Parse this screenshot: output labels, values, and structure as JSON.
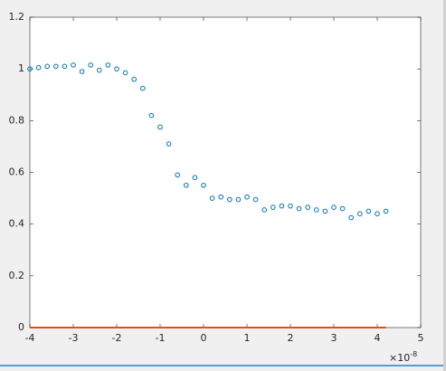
{
  "chart_data": {
    "type": "scatter",
    "x_exponent": {
      "base": "×10",
      "power": "-8"
    },
    "xlim": [
      -4,
      5
    ],
    "xticks": [
      -4,
      -3,
      -2,
      -1,
      0,
      1,
      2,
      3,
      4,
      5
    ],
    "ylim": [
      0,
      1.2
    ],
    "yticks": [
      0,
      0.2,
      0.4,
      0.6,
      0.8,
      1,
      1.2
    ],
    "grid": false,
    "series": [
      {
        "color": "#0072bd",
        "style": "markers",
        "x": [
          -4.0,
          -3.8,
          -3.6,
          -3.4,
          -3.2,
          -3.0,
          -2.8,
          -2.6,
          -2.4,
          -2.2,
          -2.0,
          -1.8,
          -1.6,
          -1.4,
          -1.2,
          -1.0,
          -0.8,
          -0.6,
          -0.4,
          -0.2,
          0.0,
          0.2,
          0.4,
          0.6,
          0.8,
          1.0,
          1.2,
          1.4,
          1.6,
          1.8,
          2.0,
          2.2,
          2.4,
          2.6,
          2.8,
          3.0,
          3.2,
          3.4,
          3.6,
          3.8,
          4.0,
          4.2
        ],
        "values": [
          1.0,
          1.005,
          1.01,
          1.01,
          1.01,
          1.015,
          0.99,
          1.015,
          0.995,
          1.015,
          1.0,
          0.985,
          0.96,
          0.925,
          0.82,
          0.775,
          0.71,
          0.59,
          0.55,
          0.58,
          0.55,
          0.5,
          0.505,
          0.495,
          0.495,
          0.505,
          0.495,
          0.455,
          0.465,
          0.47,
          0.47,
          0.46,
          0.465,
          0.455,
          0.45,
          0.465,
          0.46,
          0.425,
          0.44,
          0.45,
          0.44,
          0.45
        ]
      },
      {
        "color": "#d95319",
        "style": "line",
        "x": [
          -4,
          4.2
        ],
        "values": [
          0,
          0
        ]
      }
    ]
  }
}
